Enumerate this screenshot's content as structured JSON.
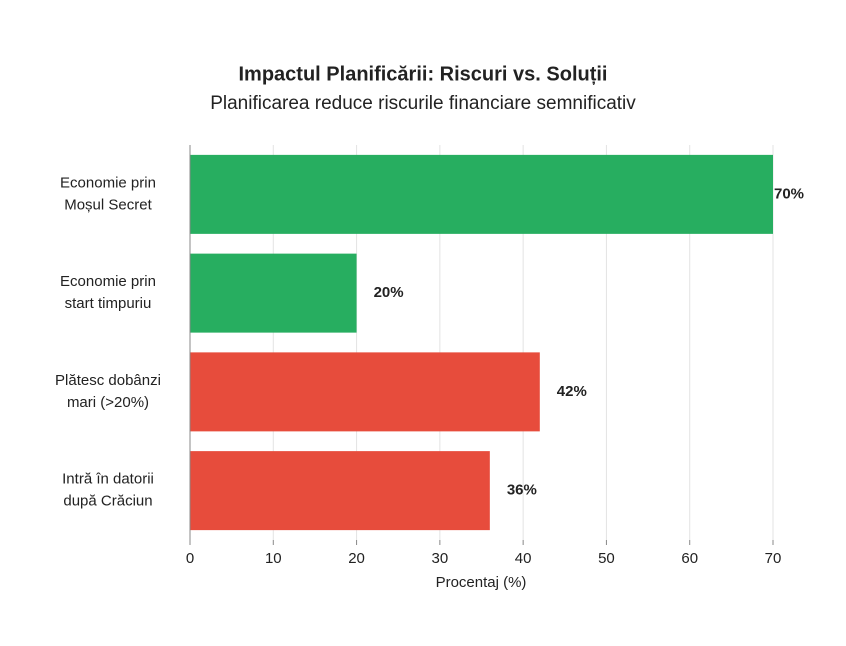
{
  "chart_data": {
    "type": "bar",
    "orientation": "horizontal",
    "title": "Impactul Planificării: Riscuri vs. Soluții",
    "subtitle": "Planificarea reduce riscurile financiare semnificativ",
    "categories": [
      "Economie prin\nMoșul Secret",
      "Economie prin\nstart timpuriu",
      "Plătesc dobânzi\nmari (>20%)",
      "Intră în datorii\ndupă Crăciun"
    ],
    "values": [
      70,
      20,
      42,
      36
    ],
    "value_labels": [
      "70%",
      "20%",
      "42%",
      "36%"
    ],
    "colors": [
      "#27ae60",
      "#27ae60",
      "#e74c3c",
      "#e74c3c"
    ],
    "xlabel": "Procentaj (%)",
    "xlim": [
      0,
      70
    ],
    "xticks": [
      0,
      10,
      20,
      30,
      40,
      50,
      60,
      70
    ],
    "grid": true
  }
}
